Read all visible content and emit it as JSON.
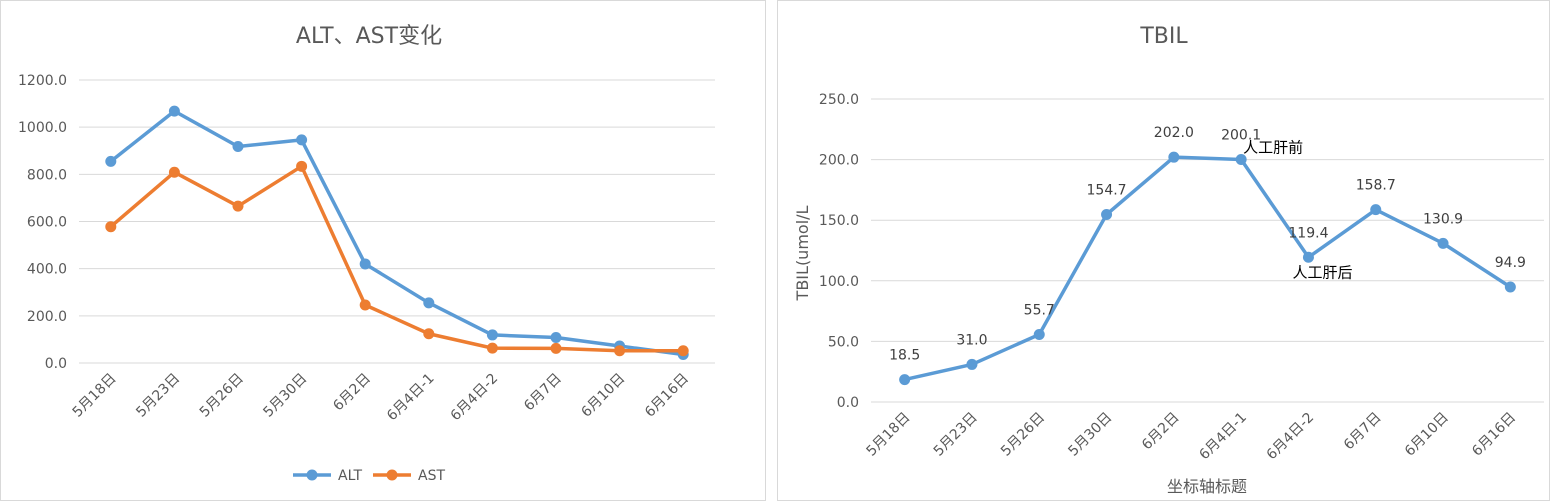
{
  "chart_data": [
    {
      "type": "line",
      "title": "ALT、AST变化",
      "categories": [
        "5月18日",
        "5月23日",
        "5月26日",
        "5月30日",
        "6月2日",
        "6月4日-1",
        "6月4日-2",
        "6月7日",
        "6月10日",
        "6月16日"
      ],
      "series": [
        {
          "name": "ALT",
          "color": "#5b9bd5",
          "values": [
            855,
            1068,
            918,
            946,
            420,
            255,
            119,
            108,
            72,
            36
          ]
        },
        {
          "name": "AST",
          "color": "#ed7d31",
          "values": [
            578,
            809,
            665,
            834,
            246,
            124,
            63,
            62,
            52,
            52
          ]
        }
      ],
      "xlabel": "",
      "ylabel": "",
      "ylim": [
        0,
        1200
      ],
      "yticks": [
        "0.0",
        "200.0",
        "400.0",
        "600.0",
        "800.0",
        "1000.0",
        "1200.0"
      ],
      "grid": true,
      "legend": "bottom"
    },
    {
      "type": "line",
      "title": "TBIL",
      "categories": [
        "5月18日",
        "5月23日",
        "5月26日",
        "5月30日",
        "6月2日",
        "6月4日-1",
        "6月4日-2",
        "6月7日",
        "6月10日",
        "6月16日"
      ],
      "series": [
        {
          "name": "",
          "color": "#5b9bd5",
          "values": [
            18.5,
            31.0,
            55.7,
            154.7,
            202.0,
            200.1,
            119.4,
            158.7,
            130.9,
            94.9
          ]
        }
      ],
      "data_labels": [
        "18.5",
        "31.0",
        "55.7",
        "154.7",
        "202.0",
        "200.1",
        "119.4",
        "158.7",
        "130.9",
        "94.9"
      ],
      "annotations": [
        {
          "text": "人工肝前",
          "category": "6月4日-1"
        },
        {
          "text": "人工肝后",
          "category": "6月4日-2"
        }
      ],
      "xlabel": "坐标轴标题",
      "ylabel": "TBIL(umol/L",
      "ylim": [
        0,
        250
      ],
      "yticks": [
        "0.0",
        "50.0",
        "100.0",
        "150.0",
        "200.0",
        "250.0"
      ],
      "grid": true,
      "legend": "none"
    }
  ]
}
